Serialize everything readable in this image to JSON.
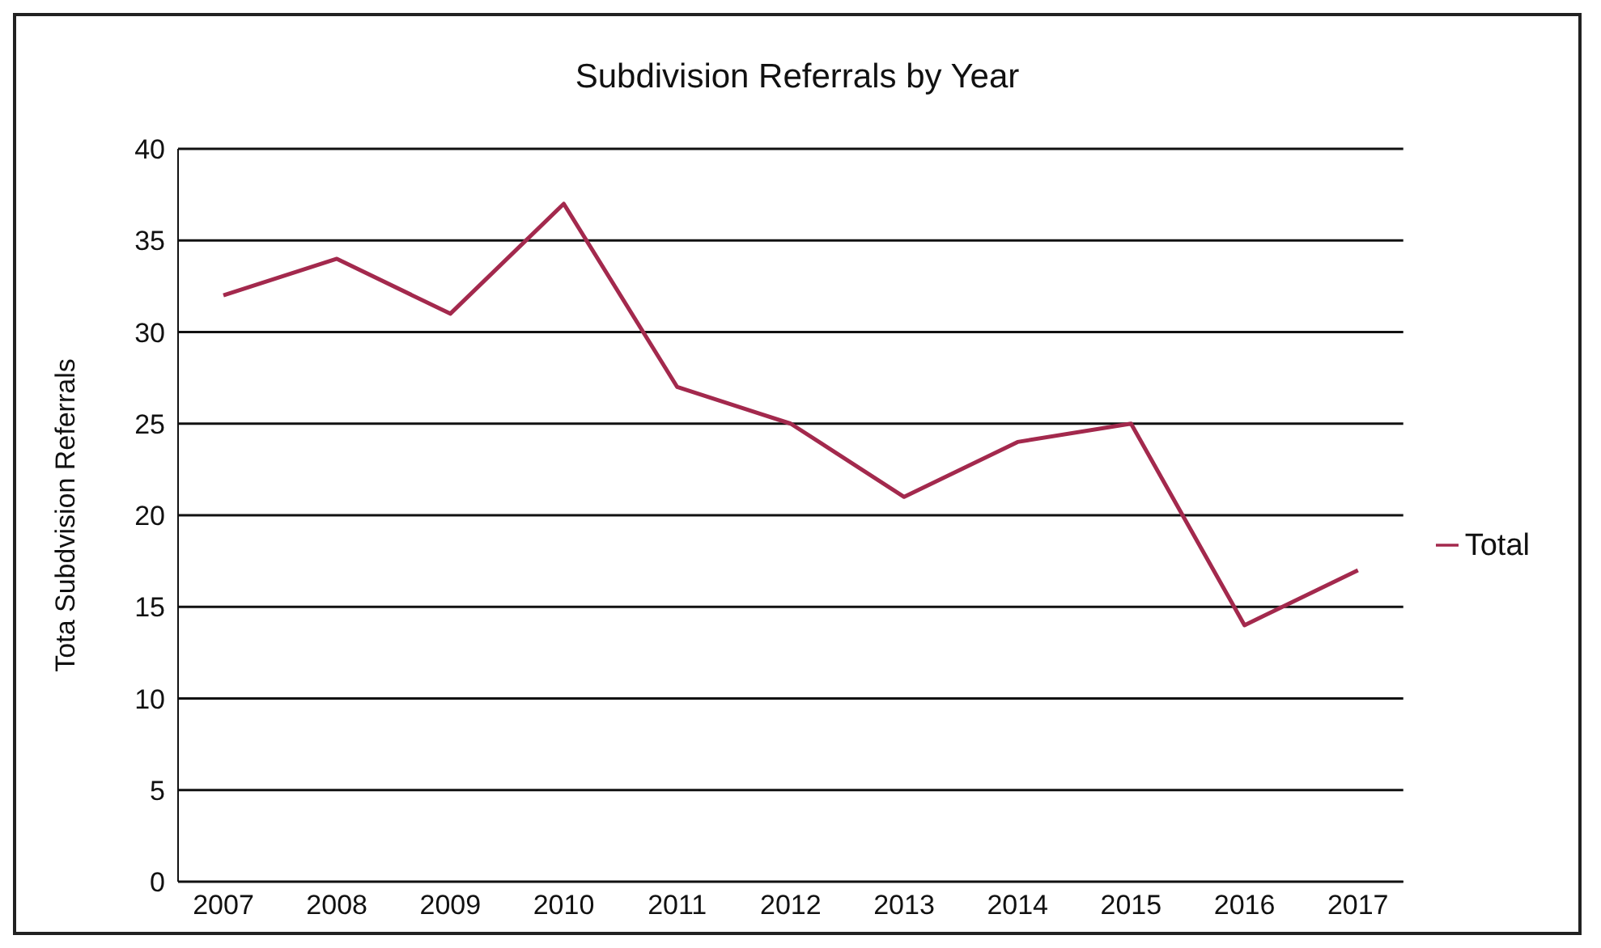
{
  "chart_data": {
    "type": "line",
    "title": "Subdivision Referrals by Year",
    "ylabel": "Tota Subdvision Referrals",
    "categories": [
      "2007",
      "2008",
      "2009",
      "2010",
      "2011",
      "2012",
      "2013",
      "2014",
      "2015",
      "2016",
      "2017"
    ],
    "series": [
      {
        "name": "Total",
        "color": "#a3294d",
        "values": [
          32,
          34,
          31,
          37,
          27,
          25,
          21,
          24,
          25,
          14,
          17
        ]
      }
    ],
    "ylim": [
      0,
      40
    ],
    "yticks": [
      0,
      5,
      10,
      15,
      20,
      25,
      30,
      35,
      40
    ],
    "grid": "y",
    "legend": "right",
    "marker": "none",
    "line_style": "solid"
  }
}
